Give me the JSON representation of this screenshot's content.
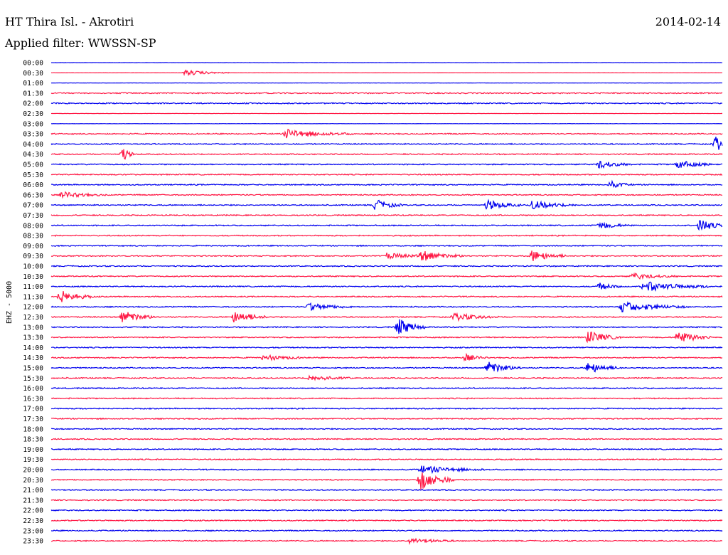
{
  "header": {
    "station": "HT Thira Isl. - Akrotiri",
    "filter": "Applied filter: WWSSN-SP",
    "date": "2014-02-14"
  },
  "colors": {
    "odd_trace": "#ff1744",
    "even_trace": "#0000ee"
  },
  "chart_data": {
    "type": "line",
    "title": "",
    "ylabel": "EHZ - 5000",
    "time_labels": [
      "00:00",
      "00:30",
      "01:00",
      "01:30",
      "02:00",
      "02:30",
      "03:00",
      "03:30",
      "04:00",
      "04:30",
      "05:00",
      "05:30",
      "06:00",
      "06:30",
      "07:00",
      "07:30",
      "08:00",
      "08:30",
      "09:00",
      "09:30",
      "10:00",
      "10:30",
      "11:00",
      "11:30",
      "12:00",
      "12:30",
      "13:00",
      "13:30",
      "14:00",
      "14:30",
      "15:00",
      "15:30",
      "16:00",
      "16:30",
      "17:00",
      "17:30",
      "18:00",
      "18:30",
      "19:00",
      "19:30",
      "20:00",
      "20:30",
      "21:00",
      "21:30",
      "22:00",
      "22:30",
      "23:00",
      "23:30"
    ],
    "x_range_minutes": [
      0,
      30
    ],
    "events": [
      {
        "row": 1,
        "minute": 6.0,
        "amp": 4,
        "dur": 2
      },
      {
        "row": 7,
        "minute": 10.5,
        "amp": 6,
        "dur": 3
      },
      {
        "row": 8,
        "minute": 29.7,
        "amp": 11,
        "dur": 0.8
      },
      {
        "row": 9,
        "minute": 3.2,
        "amp": 10,
        "dur": 0.5
      },
      {
        "row": 10,
        "minute": 24.5,
        "amp": 5,
        "dur": 1.5
      },
      {
        "row": 10,
        "minute": 28.0,
        "amp": 6,
        "dur": 1.5
      },
      {
        "row": 12,
        "minute": 25.0,
        "amp": 5,
        "dur": 1
      },
      {
        "row": 13,
        "minute": 0.5,
        "amp": 4,
        "dur": 2
      },
      {
        "row": 14,
        "minute": 14.5,
        "amp": 8,
        "dur": 1.2
      },
      {
        "row": 14,
        "minute": 19.5,
        "amp": 7,
        "dur": 1.5
      },
      {
        "row": 14,
        "minute": 21.5,
        "amp": 6,
        "dur": 2
      },
      {
        "row": 16,
        "minute": 29.0,
        "amp": 10,
        "dur": 1
      },
      {
        "row": 16,
        "minute": 24.5,
        "amp": 5,
        "dur": 1.5
      },
      {
        "row": 19,
        "minute": 16.5,
        "amp": 7,
        "dur": 2
      },
      {
        "row": 19,
        "minute": 21.5,
        "amp": 8,
        "dur": 1.5
      },
      {
        "row": 19,
        "minute": 15.0,
        "amp": 4,
        "dur": 2
      },
      {
        "row": 21,
        "minute": 26.0,
        "amp": 4,
        "dur": 2
      },
      {
        "row": 22,
        "minute": 24.5,
        "amp": 5,
        "dur": 1
      },
      {
        "row": 22,
        "minute": 26.5,
        "amp": 7,
        "dur": 3
      },
      {
        "row": 23,
        "minute": 0.4,
        "amp": 9,
        "dur": 1.5
      },
      {
        "row": 24,
        "minute": 11.5,
        "amp": 5,
        "dur": 2
      },
      {
        "row": 24,
        "minute": 25.5,
        "amp": 7,
        "dur": 3
      },
      {
        "row": 25,
        "minute": 3.2,
        "amp": 9,
        "dur": 1.5
      },
      {
        "row": 25,
        "minute": 8.2,
        "amp": 9,
        "dur": 1.5
      },
      {
        "row": 25,
        "minute": 18.0,
        "amp": 5,
        "dur": 2
      },
      {
        "row": 26,
        "minute": 15.5,
        "amp": 13,
        "dur": 1.2
      },
      {
        "row": 27,
        "minute": 24.0,
        "amp": 9,
        "dur": 1.5
      },
      {
        "row": 27,
        "minute": 28.0,
        "amp": 9,
        "dur": 1.5
      },
      {
        "row": 29,
        "minute": 9.5,
        "amp": 4,
        "dur": 2
      },
      {
        "row": 29,
        "minute": 18.5,
        "amp": 5,
        "dur": 1
      },
      {
        "row": 30,
        "minute": 19.5,
        "amp": 9,
        "dur": 1.5
      },
      {
        "row": 30,
        "minute": 24.0,
        "amp": 8,
        "dur": 1.5
      },
      {
        "row": 31,
        "minute": 11.5,
        "amp": 4,
        "dur": 2
      },
      {
        "row": 40,
        "minute": 16.5,
        "amp": 5,
        "dur": 3
      },
      {
        "row": 41,
        "minute": 16.5,
        "amp": 15,
        "dur": 1.5
      },
      {
        "row": 47,
        "minute": 16.0,
        "amp": 4,
        "dur": 2
      }
    ]
  }
}
